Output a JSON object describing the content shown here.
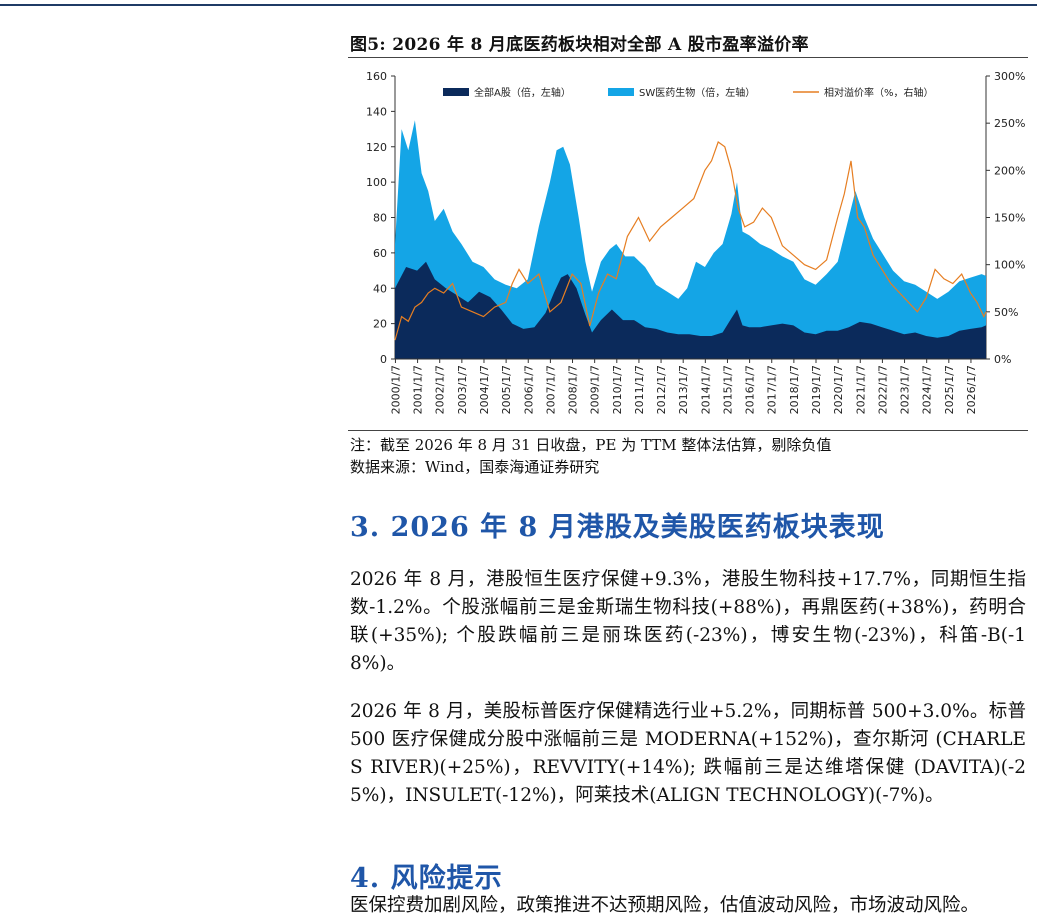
{
  "figure": {
    "title": "图5:  2026 年 8 月底医药板块相对全部 A 股市盈率溢价率",
    "note": "注：截至 2026 年 8 月 31 日收盘，PE 为 TTM 整体法估算，剔除负值",
    "source": "数据来源：Wind，国泰海通证券研究"
  },
  "chart_data": {
    "type": "area",
    "title": "",
    "legend": [
      "全部A股（倍，左轴）",
      "SW医药生物（倍，左轴）",
      "相对溢价率（%，右轴）"
    ],
    "legend_position": "top",
    "x": [
      "2000/1/7",
      "2001/1/7",
      "2002/1/7",
      "2003/1/7",
      "2004/1/7",
      "2005/1/7",
      "2006/1/7",
      "2007/1/7",
      "2008/1/7",
      "2009/1/7",
      "2010/1/7",
      "2011/1/7",
      "2012/1/7",
      "2013/1/7",
      "2014/1/7",
      "2015/1/7",
      "2016/1/7",
      "2017/1/7",
      "2018/1/7",
      "2019/1/7",
      "2020/1/7",
      "2021/1/7",
      "2022/1/7",
      "2023/1/7",
      "2024/1/7",
      "2025/1/7",
      "2026/1/7"
    ],
    "y_left_ticks": [
      "0",
      "20",
      "40",
      "60",
      "80",
      "100",
      "120",
      "140",
      "160"
    ],
    "y_right_ticks": [
      "0%",
      "50%",
      "100%",
      "150%",
      "200%",
      "250%",
      "300%"
    ],
    "y_left_lim": [
      0,
      160
    ],
    "y_right_lim": [
      0,
      300
    ],
    "series": [
      {
        "name": "全部A股（倍，左轴）",
        "axis": "left",
        "style": "area",
        "color": "#0b2a5b",
        "x": [
          2000.0,
          2000.5,
          2001.0,
          2001.4,
          2001.8,
          2002.3,
          2002.8,
          2003.3,
          2003.8,
          2004.3,
          2004.8,
          2005.3,
          2005.8,
          2006.3,
          2006.8,
          2007.2,
          2007.5,
          2007.8,
          2008.2,
          2008.6,
          2008.9,
          2009.3,
          2009.8,
          2010.3,
          2010.8,
          2011.3,
          2011.8,
          2012.3,
          2012.8,
          2013.3,
          2013.8,
          2014.3,
          2014.8,
          2015.2,
          2015.45,
          2015.7,
          2016.0,
          2016.5,
          2017.0,
          2017.5,
          2018.0,
          2018.5,
          2019.0,
          2019.5,
          2020.0,
          2020.5,
          2021.0,
          2021.5,
          2022.0,
          2022.5,
          2023.0,
          2023.5,
          2024.0,
          2024.5,
          2025.0,
          2025.5,
          2026.0,
          2026.5,
          2026.7
        ],
        "values": [
          40,
          52,
          50,
          55,
          45,
          40,
          36,
          32,
          38,
          35,
          28,
          20,
          17,
          18,
          26,
          38,
          46,
          48,
          40,
          25,
          15,
          22,
          28,
          22,
          22,
          18,
          17,
          15,
          14,
          14,
          13,
          13,
          15,
          23,
          28,
          19,
          18,
          18,
          19,
          20,
          19,
          15,
          14,
          16,
          16,
          18,
          21,
          20,
          18,
          16,
          14,
          15,
          13,
          12,
          13,
          16,
          17,
          18,
          19
        ]
      },
      {
        "name": "SW医药生物（倍，左轴）",
        "axis": "left",
        "style": "area",
        "color": "#14a5e6",
        "x": [
          2000.0,
          2000.3,
          2000.6,
          2000.9,
          2001.2,
          2001.5,
          2001.8,
          2002.2,
          2002.6,
          2003.0,
          2003.5,
          2004.0,
          2004.5,
          2005.0,
          2005.5,
          2006.0,
          2006.5,
          2007.0,
          2007.3,
          2007.6,
          2007.9,
          2008.3,
          2008.6,
          2008.9,
          2009.3,
          2009.7,
          2010.0,
          2010.4,
          2010.8,
          2011.3,
          2011.8,
          2012.3,
          2012.8,
          2013.2,
          2013.6,
          2014.0,
          2014.4,
          2014.8,
          2015.2,
          2015.45,
          2015.7,
          2016.0,
          2016.5,
          2017.0,
          2017.5,
          2018.0,
          2018.5,
          2019.0,
          2019.5,
          2020.0,
          2020.4,
          2020.8,
          2021.2,
          2021.6,
          2022.0,
          2022.5,
          2023.0,
          2023.5,
          2024.0,
          2024.5,
          2025.0,
          2025.5,
          2026.0,
          2026.5,
          2026.7
        ],
        "values": [
          65,
          130,
          118,
          135,
          105,
          95,
          78,
          85,
          72,
          65,
          55,
          52,
          45,
          42,
          40,
          45,
          75,
          100,
          118,
          120,
          110,
          80,
          55,
          38,
          55,
          62,
          65,
          58,
          58,
          52,
          42,
          38,
          34,
          40,
          55,
          52,
          60,
          65,
          82,
          100,
          72,
          70,
          65,
          62,
          58,
          55,
          45,
          42,
          48,
          55,
          75,
          95,
          80,
          68,
          60,
          50,
          44,
          42,
          38,
          34,
          38,
          44,
          46,
          48,
          47
        ]
      },
      {
        "name": "相对溢价率（%，右轴）",
        "axis": "right",
        "style": "line",
        "color": "#e67e22",
        "x": [
          2000.0,
          2000.3,
          2000.6,
          2000.9,
          2001.2,
          2001.5,
          2001.8,
          2002.2,
          2002.6,
          2003.0,
          2003.5,
          2004.0,
          2004.5,
          2005.0,
          2005.3,
          2005.6,
          2006.0,
          2006.5,
          2007.0,
          2007.5,
          2008.0,
          2008.4,
          2008.8,
          2009.2,
          2009.6,
          2010.0,
          2010.5,
          2011.0,
          2011.5,
          2012.0,
          2012.5,
          2013.0,
          2013.5,
          2014.0,
          2014.3,
          2014.6,
          2014.9,
          2015.2,
          2015.5,
          2015.8,
          2016.2,
          2016.6,
          2017.0,
          2017.5,
          2018.0,
          2018.5,
          2019.0,
          2019.5,
          2020.0,
          2020.3,
          2020.6,
          2020.9,
          2021.2,
          2021.6,
          2022.0,
          2022.4,
          2022.8,
          2023.2,
          2023.6,
          2024.0,
          2024.4,
          2024.8,
          2025.2,
          2025.6,
          2026.0,
          2026.3,
          2026.6,
          2026.7
        ],
        "values": [
          20,
          45,
          40,
          55,
          60,
          70,
          75,
          70,
          80,
          55,
          50,
          45,
          55,
          60,
          80,
          95,
          80,
          90,
          50,
          60,
          90,
          80,
          35,
          70,
          90,
          85,
          130,
          150,
          125,
          140,
          150,
          160,
          170,
          200,
          210,
          230,
          225,
          200,
          160,
          140,
          145,
          160,
          150,
          120,
          110,
          100,
          95,
          105,
          150,
          175,
          210,
          150,
          140,
          110,
          95,
          80,
          70,
          60,
          50,
          65,
          95,
          85,
          80,
          90,
          70,
          60,
          45,
          50
        ]
      }
    ]
  },
  "section3": {
    "heading": "3.  2026 年 8 月港股及美股医药板块表现",
    "para1": "2026 年 8 月，港股恒生医疗保健+9.3%，港股生物科技+17.7%，同期恒生指数-1.2%。个股涨幅前三是金斯瑞生物科技(+88%)，再鼎医药(+38%)，药明合联(+35%); 个股跌幅前三是丽珠医药(-23%)，博安生物(-23%)，科笛-B(-18%)。",
    "para2": "2026 年 8 月，美股标普医疗保健精选行业+5.2%，同期标普 500+3.0%。标普 500 医疗保健成分股中涨幅前三是 MODERNA(+152%)，查尔斯河 (CHARLES RIVER)(+25%)，REVVITY(+14%); 跌幅前三是达维塔保健 (DAVITA)(-25%)，INSULET(-12%)，阿莱技术(ALIGN TECHNOLOGY)(-7%)。"
  },
  "section4": {
    "heading": "4.  风险提示",
    "para": "医保控费加剧风险，政策推进不达预期风险，估值波动风险，市场波动风险。"
  }
}
